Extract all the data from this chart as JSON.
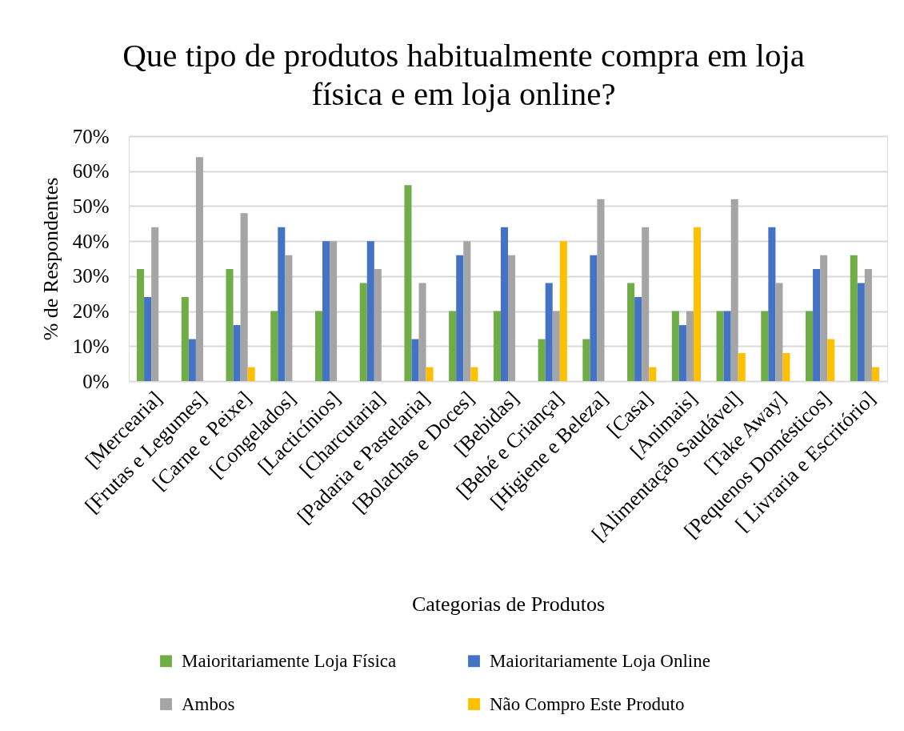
{
  "chart_data": {
    "type": "bar",
    "title": "Que tipo de produtos habitualmente compra em loja física e em loja online?",
    "xlabel": "Categorias de Produtos",
    "ylabel": "% de Respondentes",
    "categories": [
      "[Mercearia]",
      "[Frutas e Legumes]",
      "[Carne e Peixe]",
      "[Congelados]",
      "[Lacticínios]",
      "[Charcutaria]",
      "[Padaria e Pastelaria]",
      "[Bolachas e Doces]",
      "[Bebidas]",
      "[Bebé e Criança]",
      "[Higiene e Beleza]",
      "[Casa]",
      "[Animais]",
      "[Alimentação Saudável]",
      "[Take Away]",
      "[Pequenos Domésticos]",
      "[ Livraria e Escritório]"
    ],
    "series": [
      {
        "name": "Maioritariamente Loja Física",
        "color": "#70ad47",
        "values": [
          32,
          24,
          32,
          20,
          20,
          28,
          56,
          20,
          20,
          12,
          12,
          28,
          20,
          20,
          20,
          20,
          36
        ]
      },
      {
        "name": "Maioritariamente Loja Online",
        "color": "#4472c4",
        "values": [
          24,
          12,
          16,
          44,
          40,
          40,
          12,
          36,
          44,
          28,
          36,
          24,
          16,
          20,
          44,
          32,
          28
        ]
      },
      {
        "name": "Ambos",
        "color": "#a5a5a5",
        "values": [
          44,
          64,
          48,
          36,
          40,
          32,
          28,
          40,
          36,
          20,
          52,
          44,
          20,
          52,
          28,
          36,
          32
        ]
      },
      {
        "name": "Não Compro Este Produto",
        "color": "#ffc000",
        "values": [
          0,
          0,
          4,
          0,
          0,
          0,
          4,
          4,
          0,
          40,
          0,
          4,
          44,
          8,
          8,
          12,
          4
        ]
      }
    ],
    "ylim": [
      0,
      70
    ],
    "yticks": [
      {
        "value": 0,
        "label": "0%"
      },
      {
        "value": 10,
        "label": "10%"
      },
      {
        "value": 20,
        "label": "20%"
      },
      {
        "value": 30,
        "label": "30%"
      },
      {
        "value": 40,
        "label": "40%"
      },
      {
        "value": 50,
        "label": "50%"
      },
      {
        "value": 60,
        "label": "60%"
      },
      {
        "value": 70,
        "label": "70%"
      }
    ],
    "grid": "y",
    "legend": "bottom"
  }
}
